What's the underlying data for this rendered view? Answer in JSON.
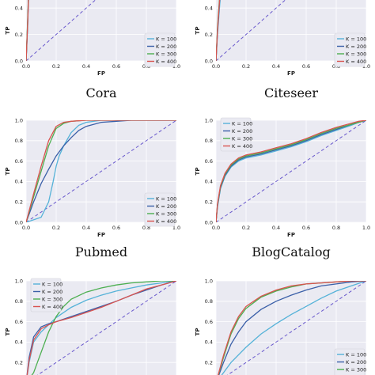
{
  "style": {
    "panel_bg": "#eaeaf2",
    "grid": "#ffffff",
    "diagonal": "#6a5acd",
    "series_colors": [
      "#55b2d8",
      "#3a5fa8",
      "#4caf50",
      "#d9534f"
    ]
  },
  "legend_labels": [
    "K = 100",
    "K = 200",
    "K = 300",
    "K = 400"
  ],
  "chart_data": [
    {
      "type": "line",
      "caption": "Cora",
      "xlabel": "FP",
      "ylabel": "TP",
      "xlim": [
        0,
        1
      ],
      "ylim": [
        0,
        1
      ],
      "xticks": [
        "0.0",
        "0.2",
        "0.4",
        "0.6",
        "0.8",
        "1.0"
      ],
      "yticks": [
        "0.0",
        "0.2",
        "0.4",
        "0.6",
        "0.8",
        "1.0"
      ],
      "grid": true,
      "legend": "lower-right",
      "diagonal": true,
      "series": [
        {
          "name": "K = 100",
          "x": [
            0,
            0.01,
            0.02,
            0.04,
            0.06,
            0.08,
            0.1,
            1
          ],
          "y": [
            0,
            0.25,
            0.6,
            0.85,
            0.95,
            0.99,
            1,
            1
          ]
        },
        {
          "name": "K = 200",
          "x": [
            0,
            0.01,
            0.02,
            0.04,
            0.06,
            0.08,
            0.1,
            1
          ],
          "y": [
            0,
            0.28,
            0.62,
            0.87,
            0.96,
            0.99,
            1,
            1
          ]
        },
        {
          "name": "K = 300",
          "x": [
            0,
            0.01,
            0.02,
            0.04,
            0.06,
            0.08,
            0.1,
            1
          ],
          "y": [
            0,
            0.3,
            0.64,
            0.88,
            0.96,
            0.99,
            1,
            1
          ]
        },
        {
          "name": "K = 400",
          "x": [
            0,
            0.01,
            0.02,
            0.04,
            0.06,
            0.08,
            0.1,
            1
          ],
          "y": [
            0,
            0.27,
            0.61,
            0.86,
            0.95,
            0.99,
            1,
            1
          ]
        }
      ]
    },
    {
      "type": "line",
      "caption": "Citeseer",
      "xlabel": "FP",
      "ylabel": "TP",
      "xlim": [
        0,
        1
      ],
      "ylim": [
        0,
        1
      ],
      "xticks": [
        "0.0",
        "0.2",
        "0.4",
        "0.6",
        "0.8",
        "1.0"
      ],
      "yticks": [
        "0.0",
        "0.2",
        "0.4",
        "0.6",
        "0.8",
        "1.0"
      ],
      "grid": true,
      "legend": "right",
      "diagonal": true,
      "series": [
        {
          "name": "K = 100",
          "x": [
            0,
            0.01,
            0.03,
            0.05,
            0.08,
            0.1,
            0.14,
            0.18,
            0.24,
            1
          ],
          "y": [
            0,
            0.2,
            0.5,
            0.72,
            0.85,
            0.92,
            0.96,
            0.99,
            1,
            1
          ]
        },
        {
          "name": "K = 200",
          "x": [
            0,
            0.01,
            0.03,
            0.05,
            0.08,
            0.1,
            0.14,
            0.18,
            1
          ],
          "y": [
            0,
            0.22,
            0.55,
            0.76,
            0.88,
            0.94,
            0.98,
            1,
            1
          ]
        },
        {
          "name": "K = 300",
          "x": [
            0,
            0.01,
            0.03,
            0.05,
            0.08,
            0.1,
            0.14,
            0.18,
            1
          ],
          "y": [
            0,
            0.25,
            0.58,
            0.78,
            0.9,
            0.95,
            0.98,
            1,
            1
          ]
        },
        {
          "name": "K = 400",
          "x": [
            0,
            0.01,
            0.03,
            0.05,
            0.08,
            0.1,
            0.14,
            0.18,
            1
          ],
          "y": [
            0,
            0.23,
            0.56,
            0.77,
            0.89,
            0.94,
            0.98,
            1,
            1
          ]
        }
      ]
    },
    {
      "type": "line",
      "caption": "Pubmed",
      "xlabel": "FP",
      "ylabel": "TP",
      "xlim": [
        0,
        1
      ],
      "ylim": [
        0,
        1
      ],
      "xticks": [
        "0.0",
        "0.2",
        "0.4",
        "0.6",
        "0.8",
        "1.0"
      ],
      "yticks": [
        "0.0",
        "0.2",
        "0.4",
        "0.6",
        "0.8",
        "1.0"
      ],
      "grid": true,
      "legend": "lower-right",
      "diagonal": true,
      "series": [
        {
          "name": "K = 100",
          "x": [
            0,
            0.1,
            0.15,
            0.18,
            0.2,
            0.22,
            0.25,
            0.3,
            0.35,
            0.4,
            0.5,
            0.6,
            1
          ],
          "y": [
            0,
            0.05,
            0.2,
            0.4,
            0.55,
            0.65,
            0.75,
            0.88,
            0.95,
            0.98,
            1,
            1,
            1
          ]
        },
        {
          "name": "K = 200",
          "x": [
            0,
            0.05,
            0.1,
            0.15,
            0.2,
            0.25,
            0.3,
            0.35,
            0.4,
            0.5,
            0.6,
            0.7,
            1
          ],
          "y": [
            0,
            0.2,
            0.38,
            0.52,
            0.65,
            0.75,
            0.83,
            0.9,
            0.94,
            0.98,
            0.99,
            1,
            1
          ]
        },
        {
          "name": "K = 300",
          "x": [
            0,
            0.05,
            0.1,
            0.15,
            0.2,
            0.25,
            0.3,
            0.4,
            0.5,
            0.6,
            1
          ],
          "y": [
            0,
            0.25,
            0.5,
            0.75,
            0.92,
            0.97,
            0.99,
            1,
            1,
            1,
            1
          ]
        },
        {
          "name": "K = 400",
          "x": [
            0,
            0.05,
            0.1,
            0.15,
            0.2,
            0.25,
            0.3,
            0.4,
            0.5,
            0.6,
            1
          ],
          "y": [
            0,
            0.28,
            0.55,
            0.8,
            0.94,
            0.98,
            0.99,
            1,
            1,
            1,
            1
          ]
        }
      ]
    },
    {
      "type": "line",
      "caption": "BlogCatalog",
      "xlabel": "FP",
      "ylabel": "TP",
      "xlim": [
        0,
        1
      ],
      "ylim": [
        0,
        1
      ],
      "xticks": [
        "0.0",
        "0.2",
        "0.4",
        "0.6",
        "0.8",
        "1.0"
      ],
      "yticks": [
        "0.0",
        "0.2",
        "0.4",
        "0.6",
        "0.8",
        "1.0"
      ],
      "grid": true,
      "legend": "upper-left",
      "diagonal": true,
      "series": [
        {
          "name": "K = 100",
          "x": [
            0,
            0.01,
            0.03,
            0.06,
            0.1,
            0.15,
            0.2,
            0.3,
            0.4,
            0.5,
            0.6,
            0.7,
            0.8,
            0.9,
            0.95,
            1
          ],
          "y": [
            0,
            0.15,
            0.33,
            0.45,
            0.54,
            0.6,
            0.63,
            0.66,
            0.7,
            0.74,
            0.79,
            0.85,
            0.9,
            0.95,
            0.98,
            1
          ]
        },
        {
          "name": "K = 200",
          "x": [
            0,
            0.01,
            0.03,
            0.06,
            0.1,
            0.15,
            0.2,
            0.3,
            0.4,
            0.5,
            0.6,
            0.7,
            0.8,
            0.9,
            0.95,
            1
          ],
          "y": [
            0,
            0.16,
            0.34,
            0.46,
            0.55,
            0.61,
            0.64,
            0.67,
            0.71,
            0.75,
            0.8,
            0.86,
            0.91,
            0.96,
            0.98,
            1
          ]
        },
        {
          "name": "K = 300",
          "x": [
            0,
            0.01,
            0.03,
            0.06,
            0.1,
            0.15,
            0.2,
            0.3,
            0.4,
            0.5,
            0.6,
            0.7,
            0.8,
            0.9,
            0.95,
            1
          ],
          "y": [
            0,
            0.17,
            0.35,
            0.47,
            0.56,
            0.62,
            0.65,
            0.68,
            0.72,
            0.76,
            0.81,
            0.87,
            0.92,
            0.96,
            0.98,
            1
          ]
        },
        {
          "name": "K = 400",
          "x": [
            0,
            0.01,
            0.03,
            0.06,
            0.1,
            0.15,
            0.2,
            0.3,
            0.4,
            0.5,
            0.6,
            0.7,
            0.8,
            0.9,
            0.95,
            1
          ],
          "y": [
            0,
            0.18,
            0.36,
            0.48,
            0.57,
            0.63,
            0.66,
            0.69,
            0.73,
            0.77,
            0.82,
            0.88,
            0.93,
            0.97,
            0.99,
            1
          ]
        }
      ]
    },
    {
      "type": "line",
      "caption": "",
      "xlabel": "",
      "ylabel": "TP",
      "xlim": [
        0,
        1
      ],
      "ylim": [
        0,
        1
      ],
      "xticks": [],
      "yticks": [
        "0.2",
        "0.4",
        "0.6",
        "0.8",
        "1.0"
      ],
      "grid": true,
      "legend": "upper-left",
      "diagonal": true,
      "series": [
        {
          "name": "K = 100",
          "x": [
            0,
            0.02,
            0.05,
            0.1,
            0.15,
            0.2,
            0.3,
            0.4,
            0.5,
            0.6,
            0.7,
            0.8,
            0.9,
            1
          ],
          "y": [
            0,
            0.2,
            0.4,
            0.5,
            0.57,
            0.64,
            0.74,
            0.81,
            0.86,
            0.9,
            0.93,
            0.96,
            0.98,
            1
          ]
        },
        {
          "name": "K = 200",
          "x": [
            0,
            0.02,
            0.05,
            0.1,
            0.15,
            0.2,
            0.3,
            0.4,
            0.5,
            0.6,
            0.7,
            0.8,
            0.9,
            1
          ],
          "y": [
            0,
            0.25,
            0.45,
            0.55,
            0.58,
            0.6,
            0.65,
            0.7,
            0.75,
            0.8,
            0.86,
            0.91,
            0.96,
            1
          ]
        },
        {
          "name": "K = 300",
          "x": [
            0,
            0.05,
            0.1,
            0.15,
            0.2,
            0.25,
            0.3,
            0.4,
            0.5,
            0.6,
            0.7,
            0.8,
            0.9,
            1
          ],
          "y": [
            0,
            0.1,
            0.3,
            0.5,
            0.65,
            0.75,
            0.82,
            0.89,
            0.93,
            0.96,
            0.98,
            0.99,
            1,
            1
          ]
        },
        {
          "name": "K = 400",
          "x": [
            0,
            0.02,
            0.05,
            0.1,
            0.15,
            0.2,
            0.3,
            0.4,
            0.5,
            0.6,
            0.7,
            0.8,
            0.9,
            1
          ],
          "y": [
            0,
            0.22,
            0.42,
            0.53,
            0.57,
            0.6,
            0.64,
            0.69,
            0.74,
            0.8,
            0.86,
            0.92,
            0.96,
            1
          ]
        }
      ]
    },
    {
      "type": "line",
      "caption": "",
      "xlabel": "",
      "ylabel": "TP",
      "xlim": [
        0,
        1
      ],
      "ylim": [
        0,
        1
      ],
      "xticks": [],
      "yticks": [
        "0.2",
        "0.4",
        "0.6",
        "0.8",
        "1.0"
      ],
      "grid": true,
      "legend": "lower-right",
      "diagonal": true,
      "series": [
        {
          "name": "K = 100",
          "x": [
            0,
            0.05,
            0.1,
            0.2,
            0.3,
            0.4,
            0.5,
            0.6,
            0.7,
            0.8,
            0.9,
            1
          ],
          "y": [
            0,
            0.1,
            0.2,
            0.35,
            0.48,
            0.58,
            0.67,
            0.75,
            0.83,
            0.9,
            0.95,
            1
          ]
        },
        {
          "name": "K = 200",
          "x": [
            0,
            0.05,
            0.1,
            0.15,
            0.2,
            0.3,
            0.4,
            0.5,
            0.6,
            0.7,
            0.8,
            0.9,
            1
          ],
          "y": [
            0,
            0.2,
            0.38,
            0.5,
            0.6,
            0.72,
            0.8,
            0.86,
            0.91,
            0.95,
            0.97,
            0.99,
            1
          ]
        },
        {
          "name": "K = 300",
          "x": [
            0,
            0.05,
            0.1,
            0.15,
            0.2,
            0.3,
            0.4,
            0.5,
            0.6,
            0.7,
            0.8,
            0.9,
            1
          ],
          "y": [
            0,
            0.25,
            0.48,
            0.63,
            0.73,
            0.84,
            0.9,
            0.94,
            0.97,
            0.98,
            0.99,
            1,
            1
          ]
        },
        {
          "name": "K = 400",
          "x": [
            0,
            0.05,
            0.1,
            0.15,
            0.2,
            0.3,
            0.4,
            0.5,
            0.6,
            0.7,
            0.8,
            0.9,
            1
          ],
          "y": [
            0,
            0.27,
            0.5,
            0.65,
            0.75,
            0.85,
            0.91,
            0.95,
            0.97,
            0.98,
            0.99,
            1,
            1
          ]
        }
      ]
    }
  ]
}
